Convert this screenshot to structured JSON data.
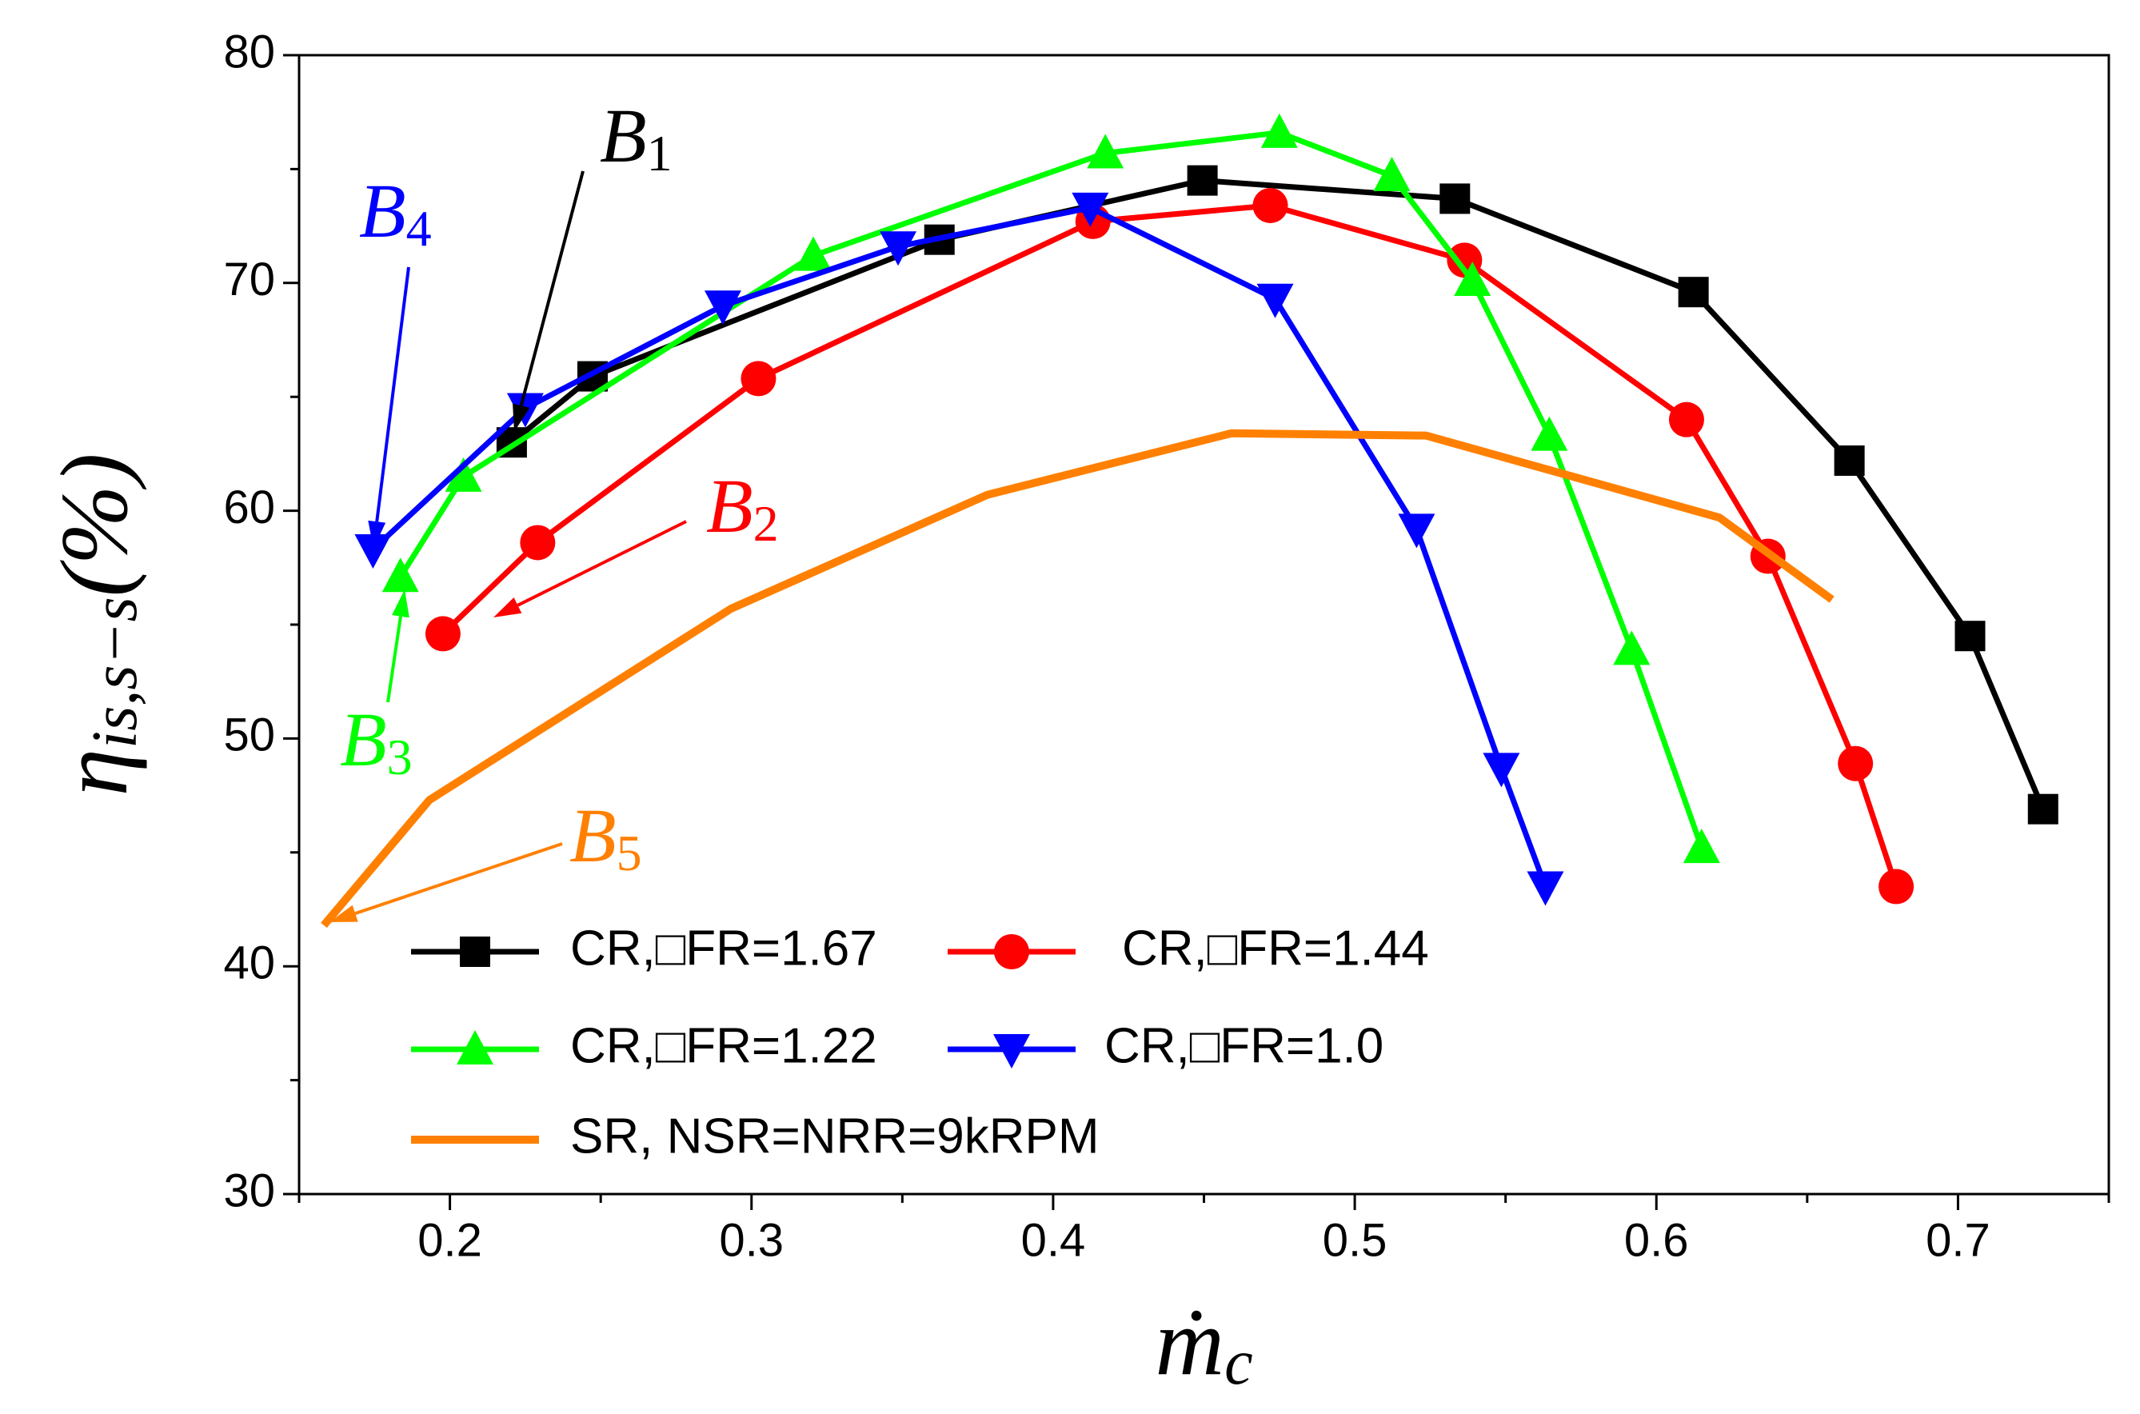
{
  "chart_data": {
    "type": "line",
    "xlabel": [
      "ṁ",
      "c"
    ],
    "ylabel": [
      "η",
      "is,s−s",
      "(%)"
    ],
    "xlim": [
      0.15,
      0.75
    ],
    "xticks": [
      0.2,
      0.3,
      0.4,
      0.5,
      0.6,
      0.7
    ],
    "xminorticks": [
      0.15,
      0.25,
      0.35,
      0.45,
      0.55,
      0.65,
      0.75
    ],
    "ylim": [
      30,
      80
    ],
    "yticks": [
      30,
      40,
      50,
      60,
      70,
      80
    ],
    "yminorticks": [
      35,
      45,
      55,
      65,
      75
    ],
    "series": [
      {
        "name": "CR,□FR=1.67",
        "color": "#000000",
        "marker": "square",
        "x": [
          0.2205,
          0.2473,
          0.3623,
          0.4495,
          0.5332,
          0.6123,
          0.664,
          0.704,
          0.7282
        ],
        "values": [
          63.0,
          65.9,
          71.9,
          74.5,
          73.7,
          69.6,
          62.2,
          54.5,
          46.9
        ]
      },
      {
        "name": "CR,□FR=1.44",
        "color": "#ff0000",
        "marker": "circle",
        "x": [
          0.1977,
          0.2291,
          0.3023,
          0.4132,
          0.472,
          0.5364,
          0.61,
          0.637,
          0.666,
          0.6795
        ],
        "values": [
          54.6,
          58.6,
          65.8,
          72.7,
          73.4,
          71.0,
          64.0,
          58.0,
          48.9,
          43.5
        ]
      },
      {
        "name": "CR,□FR=1.22",
        "color": "#00ff00",
        "marker": "triangle-up",
        "x": [
          0.1836,
          0.2045,
          0.3205,
          0.4173,
          0.475,
          0.5123,
          0.539,
          0.5645,
          0.5918,
          0.615
        ],
        "values": [
          57.1,
          61.5,
          71.2,
          75.7,
          76.6,
          74.7,
          70.1,
          63.3,
          53.9,
          45.2
        ]
      },
      {
        "name": "CR,□FR=1.0",
        "color": "#0000ff",
        "marker": "triangle-down",
        "x": [
          0.1745,
          0.225,
          0.2905,
          0.3486,
          0.4123,
          0.4736,
          0.5205,
          0.5486,
          0.5632
        ],
        "values": [
          58.3,
          64.5,
          69.0,
          71.6,
          73.3,
          69.3,
          59.2,
          48.7,
          43.5
        ]
      },
      {
        "name": "SR, NSR=NRR=9kRPM",
        "color": "#ff8000",
        "marker": "none",
        "x": [
          0.1582,
          0.1932,
          0.2932,
          0.3782,
          0.4591,
          0.5236,
          0.6209,
          0.6582
        ],
        "values": [
          41.8,
          47.3,
          55.7,
          60.7,
          63.4,
          63.3,
          59.7,
          56.1
        ]
      }
    ],
    "annotations": [
      {
        "text": [
          "B",
          "1"
        ],
        "color": "#000000"
      },
      {
        "text": [
          "B",
          "4"
        ],
        "color": "#0000ff"
      },
      {
        "text": [
          "B",
          "2"
        ],
        "color": "#ff0000"
      },
      {
        "text": [
          "B",
          "3"
        ],
        "color": "#00ff00"
      },
      {
        "text": [
          "B",
          "5"
        ],
        "color": "#ff8000"
      }
    ]
  }
}
